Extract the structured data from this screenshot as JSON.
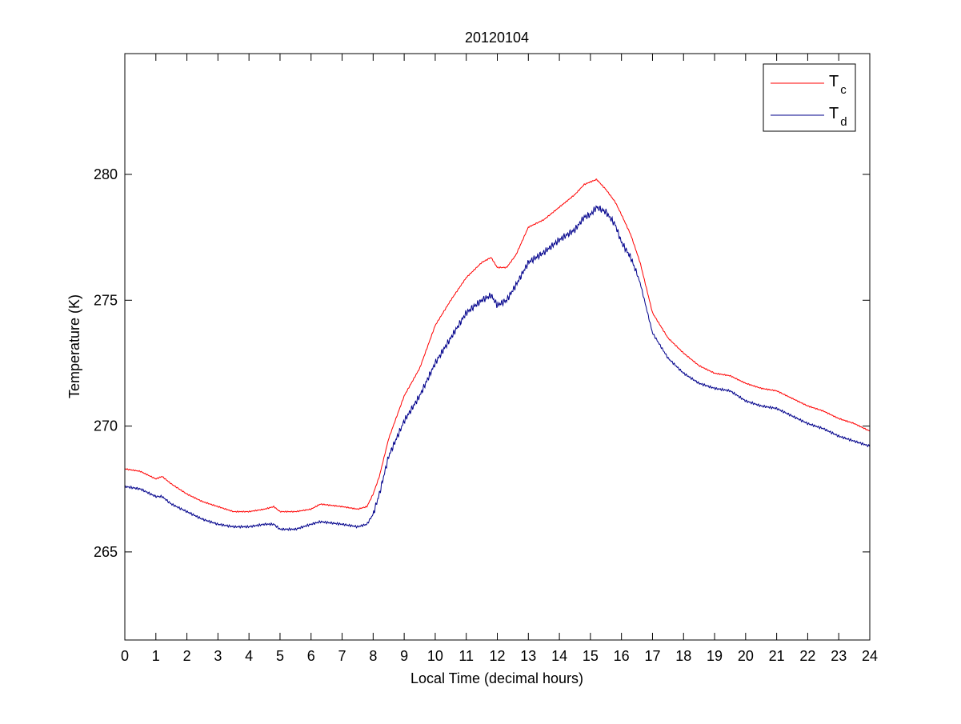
{
  "chart_data": {
    "type": "line",
    "title": "20120104",
    "xlabel": "Local Time (decimal hours)",
    "ylabel": "Temperature (K)",
    "xlim": [
      0,
      24
    ],
    "ylim": [
      261.5,
      284.8
    ],
    "xticks": [
      0,
      1,
      2,
      3,
      4,
      5,
      6,
      7,
      8,
      9,
      10,
      11,
      12,
      13,
      14,
      15,
      16,
      17,
      18,
      19,
      20,
      21,
      22,
      23,
      24
    ],
    "yticks": [
      265,
      270,
      275,
      280
    ],
    "grid": false,
    "legend_position": "top-right",
    "x": [
      0,
      0.5,
      1,
      1.2,
      1.5,
      2,
      2.5,
      3,
      3.5,
      4,
      4.5,
      4.8,
      5,
      5.5,
      6,
      6.3,
      7,
      7.5,
      7.8,
      8,
      8.2,
      8.5,
      9,
      9.5,
      10,
      10.5,
      11,
      11.5,
      11.8,
      12,
      12.3,
      12.6,
      13,
      13.5,
      14,
      14.5,
      14.8,
      15,
      15.2,
      15.5,
      15.8,
      16,
      16.3,
      16.6,
      17,
      17.5,
      18,
      18.5,
      19,
      19.5,
      20,
      20.5,
      21,
      21.5,
      22,
      22.5,
      23,
      23.5,
      24
    ],
    "series": [
      {
        "name": "T",
        "subscript": "c",
        "color": "#ff0000",
        "values": [
          268.3,
          268.2,
          267.9,
          268.0,
          267.7,
          267.3,
          267.0,
          266.8,
          266.6,
          266.6,
          266.7,
          266.8,
          266.6,
          266.6,
          266.7,
          266.9,
          266.8,
          266.7,
          266.8,
          267.3,
          268.0,
          269.5,
          271.2,
          272.3,
          274.0,
          275.0,
          275.9,
          276.5,
          276.7,
          276.3,
          276.3,
          276.8,
          277.9,
          278.2,
          278.7,
          279.2,
          279.6,
          279.7,
          279.8,
          279.4,
          278.9,
          278.4,
          277.6,
          276.5,
          274.5,
          273.5,
          272.9,
          272.4,
          272.1,
          272.0,
          271.7,
          271.5,
          271.4,
          271.1,
          270.8,
          270.6,
          270.3,
          270.1,
          269.8
        ]
      },
      {
        "name": "T",
        "subscript": "d",
        "color": "#00008b",
        "values": [
          267.6,
          267.5,
          267.2,
          267.2,
          266.9,
          266.6,
          266.3,
          266.1,
          266.0,
          266.0,
          266.1,
          266.1,
          265.9,
          265.9,
          266.1,
          266.2,
          266.1,
          266.0,
          266.1,
          266.5,
          267.3,
          268.8,
          270.2,
          271.2,
          272.5,
          273.5,
          274.5,
          275.0,
          275.2,
          274.8,
          275.0,
          275.6,
          276.5,
          276.9,
          277.4,
          277.8,
          278.3,
          278.4,
          278.7,
          278.5,
          278.0,
          277.3,
          276.7,
          275.7,
          273.7,
          272.7,
          272.1,
          271.7,
          271.5,
          271.4,
          271.0,
          270.8,
          270.7,
          270.4,
          270.1,
          269.9,
          269.6,
          269.4,
          269.2
        ]
      }
    ]
  }
}
